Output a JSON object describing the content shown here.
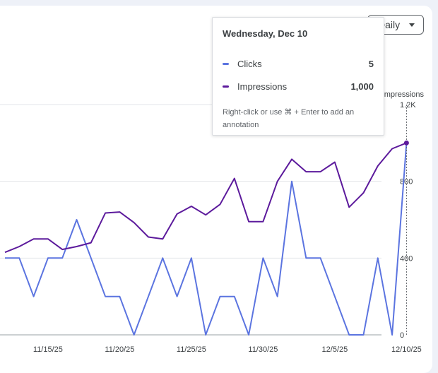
{
  "controls": {
    "period_label": "Daily"
  },
  "tooltip": {
    "date": "Wednesday, Dec 10",
    "rows": [
      {
        "label": "Clicks",
        "value": "5",
        "color": "#5b74e0"
      },
      {
        "label": "Impressions",
        "value": "1,000",
        "color": "#5c1a9c"
      }
    ],
    "note": "Right-click or use ⌘ + Enter to add an annotation"
  },
  "chart_data": {
    "type": "line",
    "title": "",
    "x": [
      "11/12/25",
      "11/13/25",
      "11/14/25",
      "11/15/25",
      "11/16/25",
      "11/17/25",
      "11/18/25",
      "11/19/25",
      "11/20/25",
      "11/21/25",
      "11/22/25",
      "11/23/25",
      "11/24/25",
      "11/25/25",
      "11/26/25",
      "11/27/25",
      "11/28/25",
      "11/29/25",
      "11/30/25",
      "12/1/25",
      "12/2/25",
      "12/3/25",
      "12/4/25",
      "12/5/25",
      "12/6/25",
      "12/7/25",
      "12/8/25",
      "12/9/25",
      "12/10/25"
    ],
    "xticks": [
      "11/15/25",
      "11/20/25",
      "11/25/25",
      "11/30/25",
      "12/5/25",
      "12/10/25"
    ],
    "series": [
      {
        "name": "Clicks",
        "axis": "left",
        "color": "#5b74e0",
        "values": [
          2,
          2,
          1,
          2,
          2,
          3,
          2,
          1,
          1,
          0,
          1,
          2,
          1,
          2,
          0,
          1,
          1,
          0,
          2,
          1,
          4,
          2,
          2,
          1,
          0,
          0,
          2,
          0,
          5
        ]
      },
      {
        "name": "Impressions",
        "axis": "right",
        "color": "#5c1a9c",
        "values": [
          430,
          460,
          500,
          500,
          445,
          460,
          480,
          635,
          640,
          585,
          510,
          500,
          630,
          670,
          625,
          680,
          815,
          590,
          590,
          800,
          915,
          850,
          850,
          900,
          665,
          740,
          880,
          970,
          1000
        ]
      }
    ],
    "y_left": {
      "ylim": [
        0,
        6
      ],
      "ticks": []
    },
    "y_right": {
      "label": "Impressions",
      "ylim": [
        0,
        1200
      ],
      "ticks": [
        "0",
        "400",
        "800",
        "1.2K"
      ]
    },
    "highlight": "12/10/25"
  }
}
